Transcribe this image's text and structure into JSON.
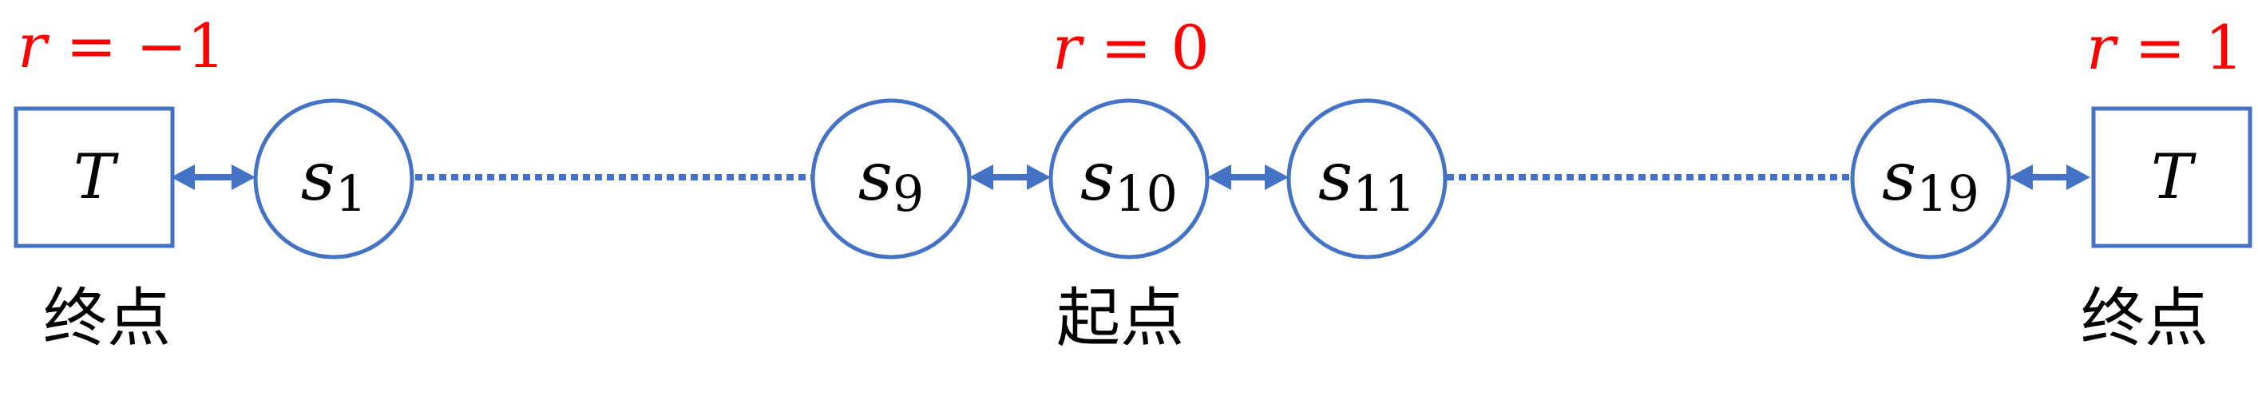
{
  "colors": {
    "node_stroke": "#4472c4",
    "reward_text": "#ff0000",
    "label_text": "#000000"
  },
  "rewards": {
    "left": {
      "var": "r",
      "eq": " = −1"
    },
    "middle": {
      "var": "r",
      "eq": " = 0"
    },
    "right": {
      "var": "r",
      "eq": " = 1"
    }
  },
  "terminals": {
    "left": {
      "label": "T",
      "caption": "终点"
    },
    "right": {
      "label": "T",
      "caption": "终点"
    }
  },
  "start_caption": "起点",
  "states": [
    {
      "base": "s",
      "sub": "1"
    },
    {
      "base": "s",
      "sub": "9"
    },
    {
      "base": "s",
      "sub": "10"
    },
    {
      "base": "s",
      "sub": "11"
    },
    {
      "base": "s",
      "sub": "19"
    }
  ]
}
